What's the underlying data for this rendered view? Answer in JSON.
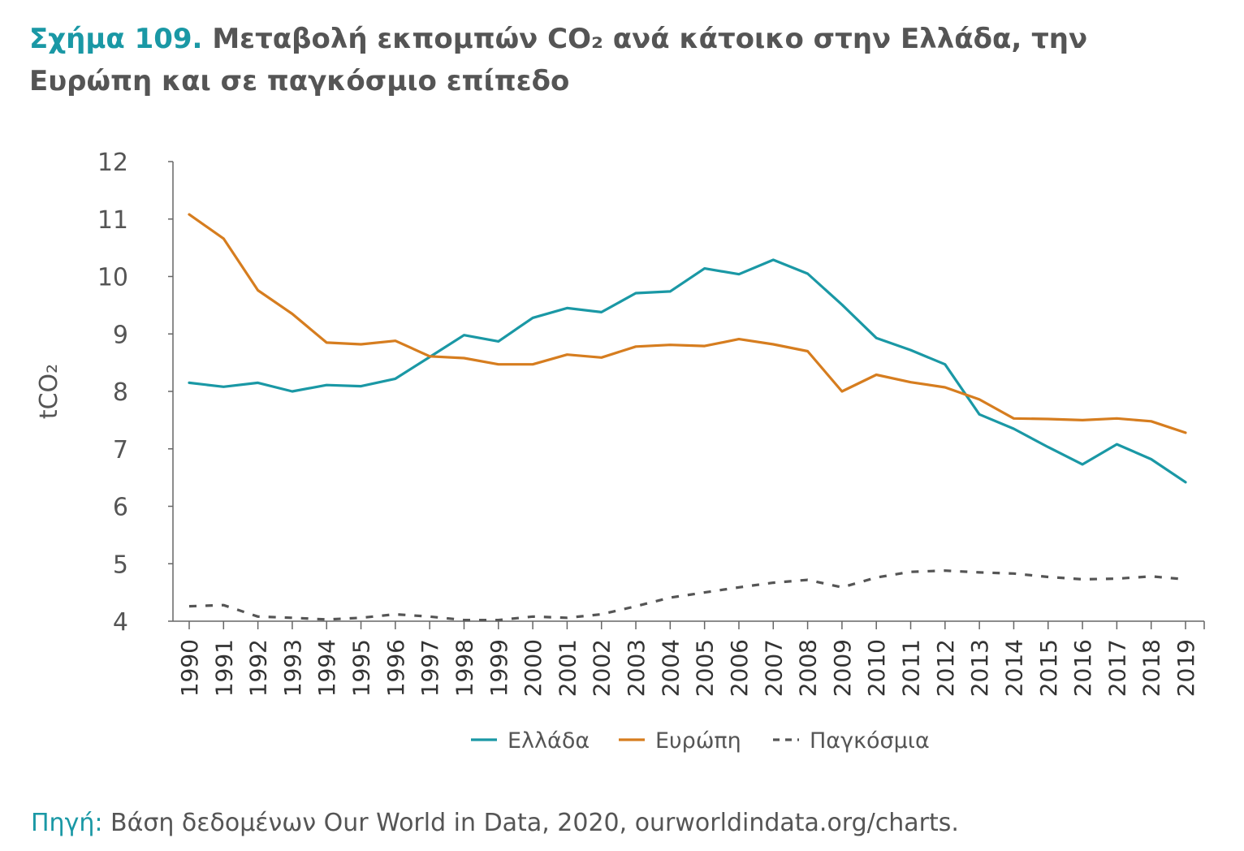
{
  "title": {
    "prefix": "Σχήμα 109.",
    "text": "Μεταβολή εκπομπών CO₂ ανά κάτοικο στην Ελλάδα, την Ευρώπη και σε παγκόσμιο επίπεδο"
  },
  "source": {
    "label": "Πηγή:",
    "text": "Βάση δεδομένων Our World in Data, 2020, ourworldindata.org/charts."
  },
  "colors": {
    "greece": "#1a98a5",
    "europe": "#d67d1f",
    "world": "#555555",
    "axis": "#666666",
    "text": "#555555"
  },
  "chart_data": {
    "type": "line",
    "ylabel": "tCO₂",
    "xlabel": "",
    "ylim": [
      4,
      12
    ],
    "yticks": [
      4,
      5,
      6,
      7,
      8,
      9,
      10,
      11,
      12
    ],
    "grid": false,
    "legend_position": "bottom-center",
    "x": [
      "1990",
      "1991",
      "1992",
      "1993",
      "1994",
      "1995",
      "1996",
      "1997",
      "1998",
      "1999",
      "2000",
      "2001",
      "2002",
      "2003",
      "2004",
      "2005",
      "2006",
      "2007",
      "2008",
      "2009",
      "2010",
      "2011",
      "2012",
      "2013",
      "2014",
      "2015",
      "2016",
      "2017",
      "2018",
      "2019"
    ],
    "series": [
      {
        "name": "Ελλάδα",
        "key": "greece",
        "style": "solid",
        "values": [
          8.15,
          8.08,
          8.15,
          8.0,
          8.11,
          8.09,
          8.22,
          8.6,
          8.98,
          8.87,
          9.28,
          9.45,
          9.38,
          9.71,
          9.74,
          10.14,
          10.04,
          10.29,
          10.05,
          9.51,
          8.93,
          8.72,
          8.47,
          7.6,
          7.35,
          7.03,
          6.73,
          7.08,
          6.82,
          6.42
        ]
      },
      {
        "name": "Ευρώπη",
        "key": "europe",
        "style": "solid",
        "values": [
          11.08,
          10.66,
          9.76,
          9.35,
          8.85,
          8.82,
          8.88,
          8.61,
          8.58,
          8.47,
          8.47,
          8.64,
          8.59,
          8.78,
          8.81,
          8.79,
          8.91,
          8.82,
          8.7,
          8.0,
          8.29,
          8.16,
          8.07,
          7.86,
          7.53,
          7.52,
          7.5,
          7.53,
          7.48,
          7.28
        ]
      },
      {
        "name": "Παγκόσμια",
        "key": "world",
        "style": "dashed",
        "values": [
          4.26,
          4.28,
          4.08,
          4.06,
          4.03,
          4.06,
          4.12,
          4.08,
          4.02,
          4.02,
          4.08,
          4.06,
          4.12,
          4.26,
          4.41,
          4.5,
          4.59,
          4.67,
          4.72,
          4.59,
          4.76,
          4.86,
          4.88,
          4.85,
          4.83,
          4.77,
          4.73,
          4.74,
          4.78,
          4.73
        ]
      }
    ]
  }
}
